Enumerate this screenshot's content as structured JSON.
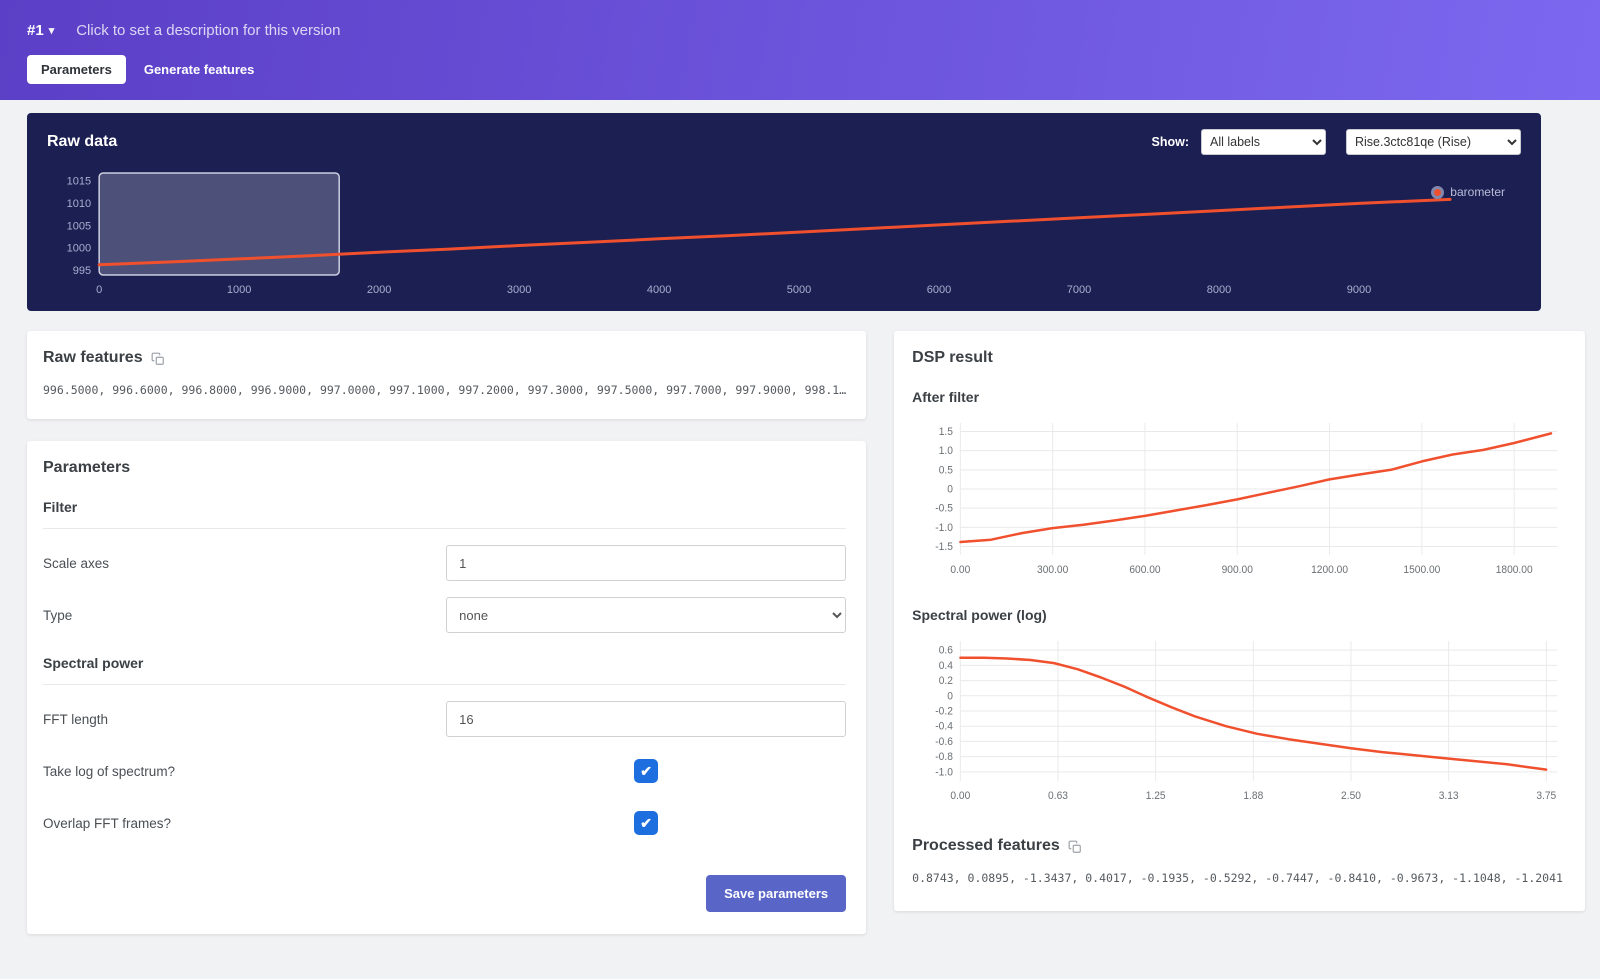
{
  "colors": {
    "accent_orange": "#f0502d",
    "header_gradient_start": "#5b3fc6",
    "header_gradient_end": "#7c68f0",
    "panel_navy": "#1c1f52",
    "checkbox_blue": "#1d6fe0",
    "save_button_indigo": "#5966c8"
  },
  "header": {
    "version_label": "#1",
    "caret": "▾",
    "description": "Click to set a description for this version",
    "tabs": [
      {
        "label": "Parameters"
      },
      {
        "label": "Generate features"
      }
    ]
  },
  "raw_data": {
    "title": "Raw data",
    "show_label": "Show:",
    "labels_filter": "All labels",
    "sample_name": "Rise.3ctc81qe (Rise)",
    "legend_label": "barometer"
  },
  "raw_features": {
    "title": "Raw features",
    "values": "996.5000, 996.6000, 996.8000, 996.9000, 997.0000, 997.1000, 997.2000, 997.3000, 997.5000, 997.7000, 997.9000, 998.1…"
  },
  "parameters": {
    "title": "Parameters",
    "filter_section": "Filter",
    "scale_axes_label": "Scale axes",
    "scale_axes_value": "1",
    "type_label": "Type",
    "type_value": "none",
    "spectral_section": "Spectral power",
    "fft_label": "FFT length",
    "fft_value": "16",
    "log_label": "Take log of spectrum?",
    "log_checked": true,
    "overlap_label": "Overlap FFT frames?",
    "overlap_checked": true,
    "save_label": "Save parameters"
  },
  "dsp": {
    "title": "DSP result",
    "after_filter_title": "After filter",
    "spectral_title": "Spectral power (log)",
    "processed_title": "Processed features",
    "processed_values": "0.8743, 0.0895, -1.3437, 0.4017, -0.1935, -0.5292, -0.7447, -0.8410, -0.9673, -1.1048, -1.2041"
  },
  "chart_data": [
    {
      "type": "line",
      "title": "Raw data",
      "xlim": [
        0,
        10100
      ],
      "ylim": [
        994,
        1016.8
      ],
      "grid_h": false,
      "grid_v": false,
      "grid_color": "#2c2f66",
      "tick_color": "#a9aecf",
      "margins": {
        "l": 52,
        "r": 8,
        "t": 8,
        "b": 30
      },
      "xticks": [
        {
          "v": 0,
          "label": "0"
        },
        {
          "v": 1000,
          "label": "1000"
        },
        {
          "v": 2000,
          "label": "2000"
        },
        {
          "v": 3000,
          "label": "3000"
        },
        {
          "v": 4000,
          "label": "4000"
        },
        {
          "v": 5000,
          "label": "5000"
        },
        {
          "v": 6000,
          "label": "6000"
        },
        {
          "v": 7000,
          "label": "7000"
        },
        {
          "v": 8000,
          "label": "8000"
        },
        {
          "v": 9000,
          "label": "9000"
        }
      ],
      "yticks": [
        {
          "v": 995,
          "label": "995"
        },
        {
          "v": 1000,
          "label": "1000"
        },
        {
          "v": 1005,
          "label": "1005"
        },
        {
          "v": 1010,
          "label": "1010"
        },
        {
          "v": 1015,
          "label": "1015"
        }
      ],
      "selection": [
        0,
        1715
      ],
      "selection_fill": "rgba(255,255,255,0.22)",
      "selection_stroke": "rgba(230,233,245,0.85)",
      "series": [
        {
          "name": "barometer",
          "color": "#f0502d",
          "width": 3,
          "x": [
            0,
            500,
            1000,
            1500,
            2000,
            2500,
            3000,
            3500,
            4000,
            4500,
            5000,
            5500,
            6000,
            6500,
            7000,
            7500,
            8000,
            8500,
            9000,
            9650
          ],
          "y": [
            996.3,
            996.9,
            997.6,
            998.3,
            999.1,
            999.8,
            1000.6,
            1001.3,
            1002.1,
            1002.8,
            1003.6,
            1004.4,
            1005.2,
            1006.0,
            1006.8,
            1007.6,
            1008.4,
            1009.2,
            1010.0,
            1010.9
          ]
        }
      ]
    },
    {
      "type": "line",
      "title": "After filter",
      "xlim": [
        0,
        1940
      ],
      "ylim": [
        -1.72,
        1.72
      ],
      "grid_h": true,
      "grid_v": true,
      "grid_color": "#e9e9e9",
      "tick_color": "#6b6f73",
      "margins": {
        "l": 52,
        "r": 6,
        "t": 8,
        "b": 30
      },
      "xticks": [
        {
          "v": 0,
          "label": "0.00"
        },
        {
          "v": 300,
          "label": "300.00"
        },
        {
          "v": 600,
          "label": "600.00"
        },
        {
          "v": 900,
          "label": "900.00"
        },
        {
          "v": 1200,
          "label": "1200.00"
        },
        {
          "v": 1500,
          "label": "1500.00"
        },
        {
          "v": 1800,
          "label": "1800.00"
        }
      ],
      "yticks": [
        {
          "v": 1.5,
          "label": "1.5"
        },
        {
          "v": 1.0,
          "label": "1.0"
        },
        {
          "v": 0.5,
          "label": "0.5"
        },
        {
          "v": 0,
          "label": "0"
        },
        {
          "v": -0.5,
          "label": "-0.5"
        },
        {
          "v": -1.0,
          "label": "-1.0"
        },
        {
          "v": -1.5,
          "label": "-1.5"
        }
      ],
      "series": [
        {
          "name": "after-filter",
          "color": "#f0502d",
          "width": 2.5,
          "x": [
            0,
            100,
            200,
            300,
            400,
            500,
            600,
            700,
            800,
            900,
            1000,
            1100,
            1200,
            1300,
            1400,
            1500,
            1600,
            1700,
            1800,
            1920
          ],
          "y": [
            -1.38,
            -1.32,
            -1.15,
            -1.02,
            -0.93,
            -0.82,
            -0.7,
            -0.56,
            -0.42,
            -0.27,
            -0.1,
            0.07,
            0.25,
            0.38,
            0.5,
            0.72,
            0.9,
            1.02,
            1.2,
            1.45
          ]
        }
      ]
    },
    {
      "type": "line",
      "title": "Spectral power (log)",
      "xlim": [
        0,
        3.82
      ],
      "ylim": [
        -1.12,
        0.72
      ],
      "grid_h": true,
      "grid_v": true,
      "grid_color": "#e9e9e9",
      "tick_color": "#6b6f73",
      "margins": {
        "l": 52,
        "r": 6,
        "t": 8,
        "b": 30
      },
      "xticks": [
        {
          "v": 0,
          "label": "0.00"
        },
        {
          "v": 0.625,
          "label": "0.63"
        },
        {
          "v": 1.25,
          "label": "1.25"
        },
        {
          "v": 1.875,
          "label": "1.88"
        },
        {
          "v": 2.5,
          "label": "2.50"
        },
        {
          "v": 3.125,
          "label": "3.13"
        },
        {
          "v": 3.75,
          "label": "3.75"
        }
      ],
      "yticks": [
        {
          "v": 0.6,
          "label": "0.6"
        },
        {
          "v": 0.4,
          "label": "0.4"
        },
        {
          "v": 0.2,
          "label": "0.2"
        },
        {
          "v": 0,
          "label": "0"
        },
        {
          "v": -0.2,
          "label": "-0.2"
        },
        {
          "v": -0.4,
          "label": "-0.4"
        },
        {
          "v": -0.6,
          "label": "-0.6"
        },
        {
          "v": -0.8,
          "label": "-0.8"
        },
        {
          "v": -1.0,
          "label": "-1.0"
        }
      ],
      "series": [
        {
          "name": "spectral-power-log",
          "color": "#f0502d",
          "width": 2.5,
          "x": [
            0,
            0.15,
            0.3,
            0.45,
            0.6,
            0.75,
            0.9,
            1.05,
            1.2,
            1.35,
            1.5,
            1.7,
            1.9,
            2.1,
            2.3,
            2.5,
            2.7,
            2.9,
            3.1,
            3.3,
            3.5,
            3.75
          ],
          "y": [
            0.5,
            0.5,
            0.49,
            0.47,
            0.43,
            0.35,
            0.24,
            0.12,
            -0.02,
            -0.15,
            -0.27,
            -0.4,
            -0.5,
            -0.57,
            -0.63,
            -0.69,
            -0.74,
            -0.78,
            -0.82,
            -0.86,
            -0.9,
            -0.97
          ]
        }
      ]
    }
  ]
}
